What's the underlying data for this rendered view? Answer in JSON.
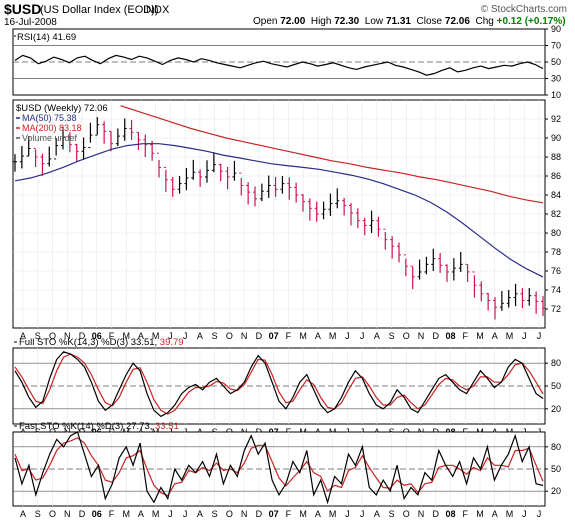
{
  "header": {
    "symbol": "$USD",
    "description": "(US Dollar Index (EOD))",
    "exchange": "INDX",
    "date": "16-Jul-2008",
    "watermark": "© StockCharts.com",
    "open_label": "Open",
    "open_value": "72.00",
    "high_label": "High",
    "high_value": "72.30",
    "low_label": "Low",
    "low_value": "71.31",
    "close_label": "Close",
    "close_value": "72.06",
    "chg_label": "Chg",
    "chg_value": "+0.12 (+0.17%)",
    "chg_color": "#008000"
  },
  "chart_data": [
    {
      "type": "line",
      "panel": "rsi",
      "title": "RSI(14) 41.69",
      "series": [
        {
          "name": "RSI(14)",
          "color": "#000000",
          "values": [
            52,
            58,
            55,
            48,
            51,
            56,
            53,
            49,
            55,
            57,
            52,
            48,
            54,
            58,
            56,
            53,
            57,
            55,
            51,
            47,
            52,
            55,
            53,
            50,
            54,
            52,
            49,
            47,
            45,
            43,
            46,
            49,
            51,
            48,
            46,
            44,
            47,
            50,
            48,
            45,
            47,
            49,
            46,
            43,
            41,
            44,
            46,
            48,
            50,
            46,
            44,
            41,
            38,
            34,
            36,
            40,
            43,
            38,
            40,
            43,
            45,
            42,
            44,
            46,
            45,
            48,
            50,
            47,
            42
          ]
        }
      ],
      "reference_lines": [
        70,
        50,
        30
      ],
      "ylim": [
        10,
        90
      ],
      "yticks": [
        10,
        30,
        50,
        70,
        90
      ]
    },
    {
      "type": "line",
      "panel": "price",
      "title": "$USD (Weekly) 72.06",
      "legend": [
        {
          "label": "MA(50) 75.38",
          "color": "#2b2b8c"
        },
        {
          "label": "MA(200) 83.18",
          "color": "#cc2222"
        },
        {
          "label": "Volume undef",
          "color": "#555555"
        }
      ],
      "x_labels": [
        "A",
        "S",
        "O",
        "N",
        "D",
        "06",
        "F",
        "M",
        "A",
        "M",
        "J",
        "J",
        "A",
        "S",
        "O",
        "N",
        "D",
        "07",
        "F",
        "M",
        "A",
        "M",
        "J",
        "J",
        "A",
        "S",
        "O",
        "N",
        "D",
        "08",
        "F",
        "M",
        "A",
        "M",
        "J",
        "J"
      ],
      "ylim": [
        70,
        94
      ],
      "yticks": [
        72,
        74,
        76,
        78,
        80,
        82,
        84,
        86,
        88,
        90,
        92
      ],
      "series": [
        {
          "name": "$USD",
          "color": "#000000",
          "values": [
            87.5,
            88.1,
            88.9,
            88.0,
            87.3,
            87.8,
            89.2,
            90.1,
            89.3,
            88.6,
            89.0,
            90.3,
            91.4,
            90.7,
            89.4,
            90.2,
            91.0,
            90.6,
            89.8,
            89.3,
            88.4,
            86.9,
            85.6,
            84.6,
            85.2,
            85.8,
            86.4,
            85.9,
            86.6,
            87.2,
            86.5,
            85.9,
            86.3,
            85.0,
            84.3,
            83.6,
            84.4,
            85.0,
            84.6,
            85.2,
            84.8,
            84.0,
            83.3,
            82.6,
            82.0,
            82.5,
            83.1,
            83.4,
            82.9,
            82.1,
            81.3,
            80.8,
            81.3,
            80.4,
            79.3,
            78.6,
            77.7,
            76.5,
            75.4,
            75.9,
            76.7,
            77.3,
            76.6,
            75.9,
            76.3,
            76.7,
            75.9,
            74.5,
            73.6,
            72.9,
            72.2,
            72.6,
            73.2,
            73.6,
            72.9,
            73.4,
            72.8,
            72.06
          ]
        },
        {
          "name": "MA(50)",
          "color": "#2b2b8c",
          "values": [
            85.5,
            85.8,
            86.3,
            86.9,
            87.6,
            88.2,
            88.8,
            89.2,
            89.4,
            89.4,
            89.2,
            88.9,
            88.6,
            88.2,
            87.9,
            87.6,
            87.3,
            87.1,
            86.9,
            86.7,
            86.4,
            86.1,
            85.7,
            85.2,
            84.6,
            84.0,
            83.2,
            82.2,
            81.0,
            79.7,
            78.4,
            77.2,
            76.2,
            75.38
          ]
        },
        {
          "name": "MA(200)",
          "color": "#cc2222",
          "values": [
            93.4,
            92.8,
            92.2,
            91.6,
            91.0,
            90.5,
            90.0,
            89.6,
            89.2,
            88.8,
            88.4,
            88.0,
            87.6,
            87.3,
            86.9,
            86.6,
            86.3,
            85.9,
            85.6,
            85.2,
            84.8,
            84.4,
            83.9,
            83.5,
            83.18
          ]
        }
      ]
    },
    {
      "type": "line",
      "panel": "full_sto",
      "title": "Full STO %K(14,3) %D(3) 33.51, 39.79",
      "series": [
        {
          "name": "%K",
          "color": "#000000",
          "values": [
            70,
            55,
            35,
            22,
            30,
            60,
            85,
            95,
            92,
            85,
            75,
            55,
            30,
            18,
            25,
            45,
            65,
            80,
            70,
            40,
            18,
            10,
            15,
            25,
            40,
            48,
            52,
            45,
            55,
            60,
            50,
            40,
            45,
            55,
            75,
            90,
            80,
            55,
            30,
            20,
            35,
            55,
            65,
            45,
            25,
            15,
            20,
            35,
            55,
            70,
            60,
            40,
            25,
            20,
            28,
            45,
            35,
            20,
            15,
            30,
            45,
            60,
            65,
            55,
            45,
            40,
            55,
            70,
            60,
            48,
            55,
            75,
            85,
            80,
            60,
            40,
            33.51
          ]
        },
        {
          "name": "%D",
          "color": "#cc2222",
          "values": [
            75,
            62,
            45,
            30,
            27,
            45,
            70,
            88,
            92,
            88,
            80,
            65,
            45,
            28,
            24,
            35,
            55,
            72,
            74,
            55,
            32,
            18,
            13,
            18,
            30,
            42,
            48,
            48,
            50,
            56,
            54,
            46,
            44,
            52,
            68,
            85,
            84,
            65,
            42,
            28,
            30,
            45,
            58,
            52,
            35,
            22,
            20,
            28,
            45,
            60,
            62,
            50,
            35,
            25,
            25,
            35,
            38,
            28,
            20,
            25,
            38,
            52,
            60,
            58,
            50,
            45,
            50,
            62,
            62,
            55,
            55,
            65,
            78,
            80,
            70,
            55,
            39.79
          ]
        }
      ],
      "reference_lines": [
        80,
        50,
        20
      ],
      "ylim": [
        0,
        100
      ],
      "yticks": [
        20,
        50,
        80
      ]
    },
    {
      "type": "line",
      "panel": "fast_sto",
      "title": "Fast STO %K(14) %D(3) 27.73, 33.51",
      "series": [
        {
          "name": "%K",
          "color": "#000000",
          "values": [
            65,
            30,
            55,
            15,
            45,
            70,
            90,
            80,
            95,
            100,
            70,
            40,
            55,
            10,
            30,
            65,
            80,
            55,
            85,
            20,
            5,
            25,
            10,
            50,
            35,
            55,
            45,
            60,
            40,
            70,
            30,
            55,
            40,
            75,
            95,
            70,
            85,
            35,
            15,
            30,
            60,
            45,
            75,
            15,
            35,
            5,
            40,
            30,
            70,
            55,
            80,
            25,
            15,
            35,
            20,
            55,
            10,
            25,
            15,
            45,
            35,
            75,
            55,
            40,
            60,
            30,
            65,
            50,
            80,
            35,
            55,
            70,
            95,
            60,
            80,
            30,
            27.73
          ]
        },
        {
          "name": "%D",
          "color": "#cc2222",
          "values": [
            70,
            48,
            50,
            35,
            38,
            55,
            75,
            85,
            88,
            92,
            85,
            68,
            55,
            35,
            32,
            45,
            65,
            68,
            75,
            50,
            28,
            18,
            14,
            30,
            32,
            48,
            45,
            52,
            48,
            58,
            48,
            50,
            45,
            58,
            78,
            82,
            82,
            60,
            38,
            27,
            38,
            48,
            60,
            45,
            40,
            20,
            28,
            25,
            48,
            52,
            68,
            52,
            38,
            25,
            24,
            35,
            28,
            30,
            18,
            30,
            32,
            52,
            55,
            55,
            50,
            43,
            52,
            48,
            65,
            55,
            55,
            53,
            75,
            75,
            78,
            55,
            33.51
          ]
        }
      ],
      "reference_lines": [
        80,
        50,
        20
      ],
      "ylim": [
        0,
        100
      ],
      "yticks": [
        20,
        50,
        80
      ]
    }
  ]
}
